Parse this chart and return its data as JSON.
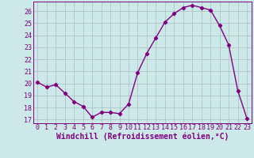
{
  "x": [
    0,
    1,
    2,
    3,
    4,
    5,
    6,
    7,
    8,
    9,
    10,
    11,
    12,
    13,
    14,
    15,
    16,
    17,
    18,
    19,
    20,
    21,
    22,
    23
  ],
  "y": [
    20.1,
    19.7,
    19.9,
    19.2,
    18.5,
    18.1,
    17.2,
    17.6,
    17.6,
    17.5,
    18.3,
    20.9,
    22.5,
    23.8,
    25.1,
    25.8,
    26.3,
    26.5,
    26.3,
    26.1,
    24.8,
    23.2,
    19.4,
    17.1
  ],
  "line_color": "#800080",
  "marker": "D",
  "marker_size": 2.2,
  "bg_color": "#cce8e8",
  "grid_color": "#aabcbc",
  "xlabel": "Windchill (Refroidissement éolien,°C)",
  "ylabel_ticks": [
    17,
    18,
    19,
    20,
    21,
    22,
    23,
    24,
    25,
    26
  ],
  "ylim": [
    16.7,
    26.8
  ],
  "xlim": [
    -0.5,
    23.5
  ],
  "xlabel_fontsize": 7.0,
  "tick_fontsize": 6.0,
  "line_width": 1.0
}
